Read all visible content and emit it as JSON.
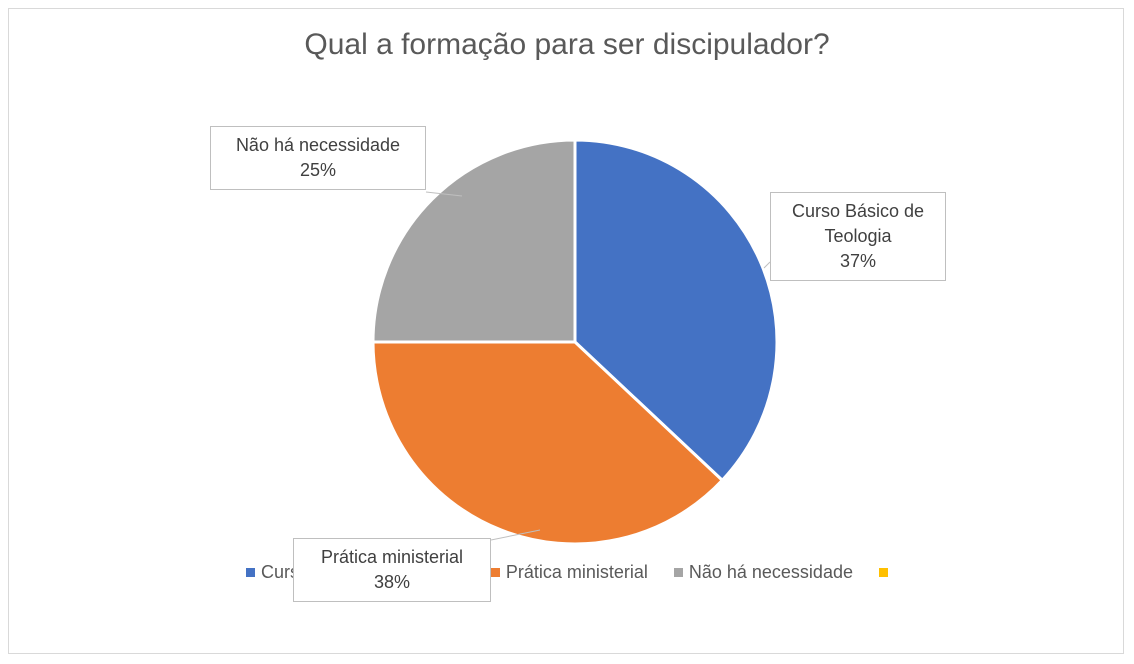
{
  "chart_data": {
    "type": "pie",
    "title": "Qual a formação para ser discipulador?",
    "categories": [
      "Curso Básico de Teologia",
      "Prática ministerial",
      "Não há necessidade",
      null
    ],
    "values": [
      37,
      38,
      25,
      null
    ],
    "value_labels": [
      "37%",
      "38%",
      "25%",
      null
    ],
    "colors": [
      "#4472c4",
      "#ed7d31",
      "#a5a5a5",
      "#ffc000"
    ],
    "legend": "bottom"
  }
}
